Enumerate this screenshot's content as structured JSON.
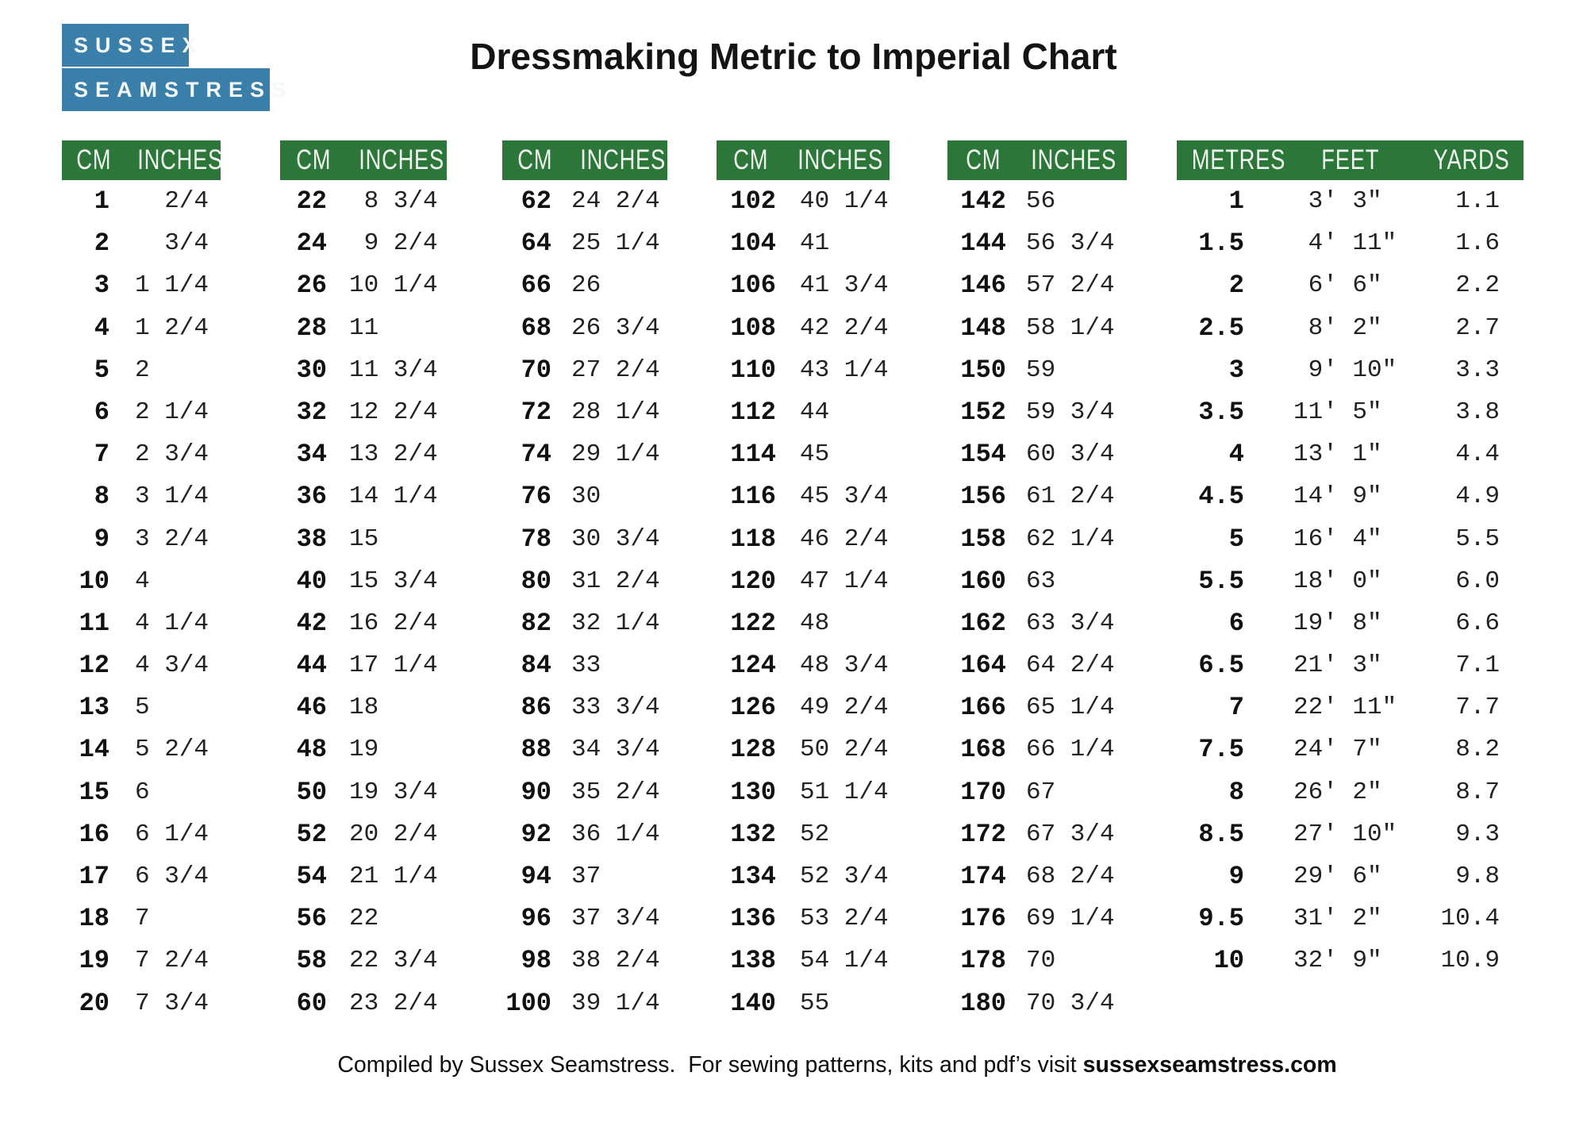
{
  "logo": {
    "line1": "SUSSEX",
    "line2": "SEAMSTRESS"
  },
  "title": "Dressmaking Metric to Imperial Chart",
  "footer": {
    "prefix": "Compiled by Sussex Seamstress.  For sewing patterns, kits and pdf’s visit ",
    "site": "sussexseamstress.com"
  },
  "colors": {
    "header_green": "#2c7639",
    "logo_blue": "#3a7fa9",
    "header_text": "#eef4ee"
  },
  "cm_tables": [
    {
      "headers": [
        "CM",
        "INCHES"
      ],
      "cm": [
        "1",
        "2",
        "3",
        "4",
        "5",
        "6",
        "7",
        "8",
        "9",
        "10",
        "11",
        "12",
        "13",
        "14",
        "15",
        "16",
        "17",
        "18",
        "19",
        "20"
      ],
      "inches": [
        "  2/4",
        "  3/4",
        "1 1/4",
        "1 2/4",
        "2",
        "2 1/4",
        "2 3/4",
        "3 1/4",
        "3 2/4",
        "4",
        "4 1/4",
        "4 3/4",
        "5",
        "5 2/4",
        "6",
        "6 1/4",
        "6 3/4",
        "7",
        "7 2/4",
        "7 3/4"
      ]
    },
    {
      "headers": [
        "CM",
        "INCHES"
      ],
      "cm": [
        "22",
        "24",
        "26",
        "28",
        "30",
        "32",
        "34",
        "36",
        "38",
        "40",
        "42",
        "44",
        "46",
        "48",
        "50",
        "52",
        "54",
        "56",
        "58",
        "60"
      ],
      "inches": [
        " 8 3/4",
        " 9 2/4",
        "10 1/4",
        "11",
        "11 3/4",
        "12 2/4",
        "13 2/4",
        "14 1/4",
        "15",
        "15 3/4",
        "16 2/4",
        "17 1/4",
        "18",
        "19",
        "19 3/4",
        "20 2/4",
        "21 1/4",
        "22",
        "22 3/4",
        "23 2/4"
      ]
    },
    {
      "headers": [
        "CM",
        "INCHES"
      ],
      "cm": [
        "62",
        "64",
        "66",
        "68",
        "70",
        "72",
        "74",
        "76",
        "78",
        "80",
        "82",
        "84",
        "86",
        "88",
        "90",
        "92",
        "94",
        "96",
        "98",
        "100"
      ],
      "inches": [
        "24 2/4",
        "25 1/4",
        "26",
        "26 3/4",
        "27 2/4",
        "28 1/4",
        "29 1/4",
        "30",
        "30 3/4",
        "31 2/4",
        "32 1/4",
        "33",
        "33 3/4",
        "34 3/4",
        "35 2/4",
        "36 1/4",
        "37",
        "37 3/4",
        "38 2/4",
        "39 1/4"
      ]
    },
    {
      "headers": [
        "CM",
        "INCHES"
      ],
      "cm": [
        "102",
        "104",
        "106",
        "108",
        "110",
        "112",
        "114",
        "116",
        "118",
        "120",
        "122",
        "124",
        "126",
        "128",
        "130",
        "132",
        "134",
        "136",
        "138",
        "140"
      ],
      "inches": [
        "40 1/4",
        "41",
        "41 3/4",
        "42 2/4",
        "43 1/4",
        "44",
        "45",
        "45 3/4",
        "46 2/4",
        "47 1/4",
        "48",
        "48 3/4",
        "49 2/4",
        "50 2/4",
        "51 1/4",
        "52",
        "52 3/4",
        "53 2/4",
        "54 1/4",
        "55"
      ]
    },
    {
      "headers": [
        "CM",
        "INCHES"
      ],
      "cm": [
        "142",
        "144",
        "146",
        "148",
        "150",
        "152",
        "154",
        "156",
        "158",
        "160",
        "162",
        "164",
        "166",
        "168",
        "170",
        "172",
        "174",
        "176",
        "178",
        "180"
      ],
      "inches": [
        "56",
        "56 3/4",
        "57 2/4",
        "58 1/4",
        "59",
        "59 3/4",
        "60 3/4",
        "61 2/4",
        "62 1/4",
        "63",
        "63 3/4",
        "64 2/4",
        "65 1/4",
        "66 1/4",
        "67",
        "67 3/4",
        "68 2/4",
        "69 1/4",
        "70",
        "70 3/4"
      ]
    }
  ],
  "metric_table": {
    "headers": [
      "METRES",
      "FEET",
      "YARDS"
    ],
    "metres": [
      "1",
      "1.5",
      "2",
      "2.5",
      "3",
      "3.5",
      "4",
      "4.5",
      "5",
      "5.5",
      "6",
      "6.5",
      "7",
      "7.5",
      "8",
      "8.5",
      "9",
      "9.5",
      "10"
    ],
    "feet": [
      " 3' 3\"",
      " 4' 11\"",
      " 6' 6\"",
      " 8' 2\"",
      " 9' 10\"",
      "11' 5\"",
      "13' 1\"",
      "14' 9\"",
      "16' 4\"",
      "18' 0\"",
      "19' 8\"",
      "21' 3\"",
      "22' 11\"",
      "24' 7\"",
      "26' 2\"",
      "27' 10\"",
      "29' 6\"",
      "31' 2\"",
      "32' 9\""
    ],
    "yards": [
      "1.1",
      "1.6",
      "2.2",
      "2.7",
      "3.3",
      "3.8",
      "4.4",
      "4.9",
      "5.5",
      "6.0",
      "6.6",
      "7.1",
      "7.7",
      "8.2",
      "8.7",
      "9.3",
      "9.8",
      "10.4",
      "10.9"
    ]
  }
}
